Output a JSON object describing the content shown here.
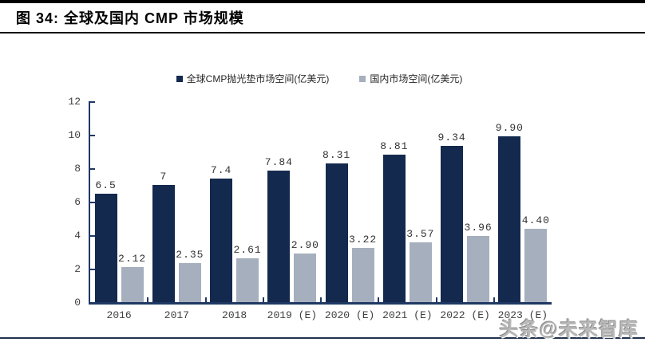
{
  "header": {
    "title": "图 34:  全球及国内 CMP 市场规模"
  },
  "chart_data": {
    "type": "bar",
    "title": "",
    "xlabel": "",
    "ylabel": "",
    "categories": [
      "2016",
      "2017",
      "2018",
      "2019 (E)",
      "2020 (E)",
      "2021 (E)",
      "2022 (E)",
      "2023 (E)"
    ],
    "series": [
      {
        "name": "全球CMP抛光垫市场空间(亿美元)",
        "color": "#14294E",
        "values": [
          6.5,
          7,
          7.4,
          7.84,
          8.31,
          8.81,
          9.34,
          9.9
        ],
        "labels": [
          "6.5",
          "7",
          "7.4",
          "7.84",
          "8.31",
          "8.81",
          "9.34",
          "9.90"
        ]
      },
      {
        "name": "国内市场空间(亿美元)",
        "color": "#A6AFBD",
        "values": [
          2.12,
          2.35,
          2.61,
          2.9,
          3.22,
          3.57,
          3.96,
          4.4
        ],
        "labels": [
          "2.12",
          "2.35",
          "2.61",
          "2.90",
          "3.22",
          "3.57",
          "3.96",
          "4.40"
        ]
      }
    ],
    "ylim": [
      0,
      12
    ],
    "yticks": [
      0,
      2,
      4,
      6,
      8,
      10,
      12
    ],
    "grid": false,
    "legend_position": "top-center",
    "axis_color": "#1F3864"
  },
  "watermark": {
    "text": "头条@未来智库"
  }
}
